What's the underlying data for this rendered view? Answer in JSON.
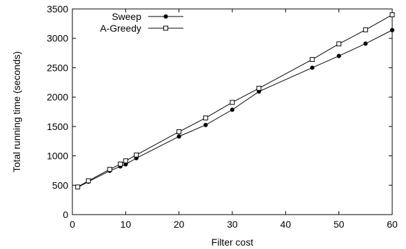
{
  "chart_data": {
    "type": "line",
    "title": "",
    "xlabel": "Filter cost",
    "ylabel": "Total running time (seconds)",
    "xlim": [
      0,
      60
    ],
    "ylim": [
      0,
      3500
    ],
    "xticks": [
      0,
      10,
      20,
      30,
      40,
      50,
      60
    ],
    "yticks": [
      0,
      500,
      1000,
      1500,
      2000,
      2500,
      3000,
      3500
    ],
    "grid": false,
    "legend_position": "top-left",
    "series": [
      {
        "name": "Sweep",
        "marker": "filled-circle",
        "x": [
          1,
          3,
          7,
          9,
          10,
          12,
          20,
          25,
          30,
          35,
          45,
          50,
          55,
          60
        ],
        "y": [
          465,
          560,
          745,
          820,
          855,
          960,
          1330,
          1525,
          1785,
          2095,
          2500,
          2700,
          2910,
          3140
        ]
      },
      {
        "name": "A-Greedy",
        "marker": "open-square",
        "x": [
          1,
          3,
          7,
          9,
          10,
          12,
          20,
          25,
          30,
          35,
          45,
          50,
          55,
          60
        ],
        "y": [
          470,
          575,
          770,
          860,
          915,
          1015,
          1410,
          1645,
          1910,
          2150,
          2640,
          2905,
          3145,
          3400
        ]
      }
    ]
  }
}
